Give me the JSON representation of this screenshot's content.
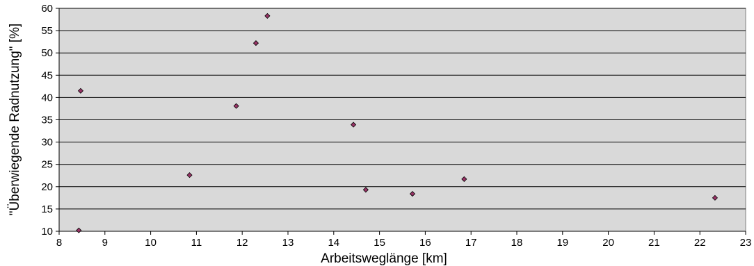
{
  "chart_data": {
    "type": "scatter",
    "title": "",
    "xlabel": "Arbeitsweglänge [km]",
    "ylabel": "\"Überwiegende Radnutzung\" [%]",
    "xlim": [
      8,
      23
    ],
    "ylim": [
      10,
      60
    ],
    "x_ticks": [
      8,
      9,
      10,
      11,
      12,
      13,
      14,
      15,
      16,
      17,
      18,
      19,
      20,
      21,
      22,
      23
    ],
    "y_ticks": [
      10,
      15,
      20,
      25,
      30,
      35,
      40,
      45,
      50,
      55,
      60
    ],
    "grid": "horizontal",
    "plot_background": "#d9d9d9",
    "marker_color": "#993366",
    "points": [
      {
        "x": 8.43,
        "y": 10.2
      },
      {
        "x": 8.47,
        "y": 41.5
      },
      {
        "x": 10.85,
        "y": 22.6
      },
      {
        "x": 11.87,
        "y": 38.1
      },
      {
        "x": 12.3,
        "y": 52.2
      },
      {
        "x": 12.55,
        "y": 58.3
      },
      {
        "x": 14.43,
        "y": 33.9
      },
      {
        "x": 14.7,
        "y": 19.3
      },
      {
        "x": 15.72,
        "y": 18.4
      },
      {
        "x": 16.85,
        "y": 21.7
      },
      {
        "x": 22.33,
        "y": 17.5
      }
    ]
  }
}
